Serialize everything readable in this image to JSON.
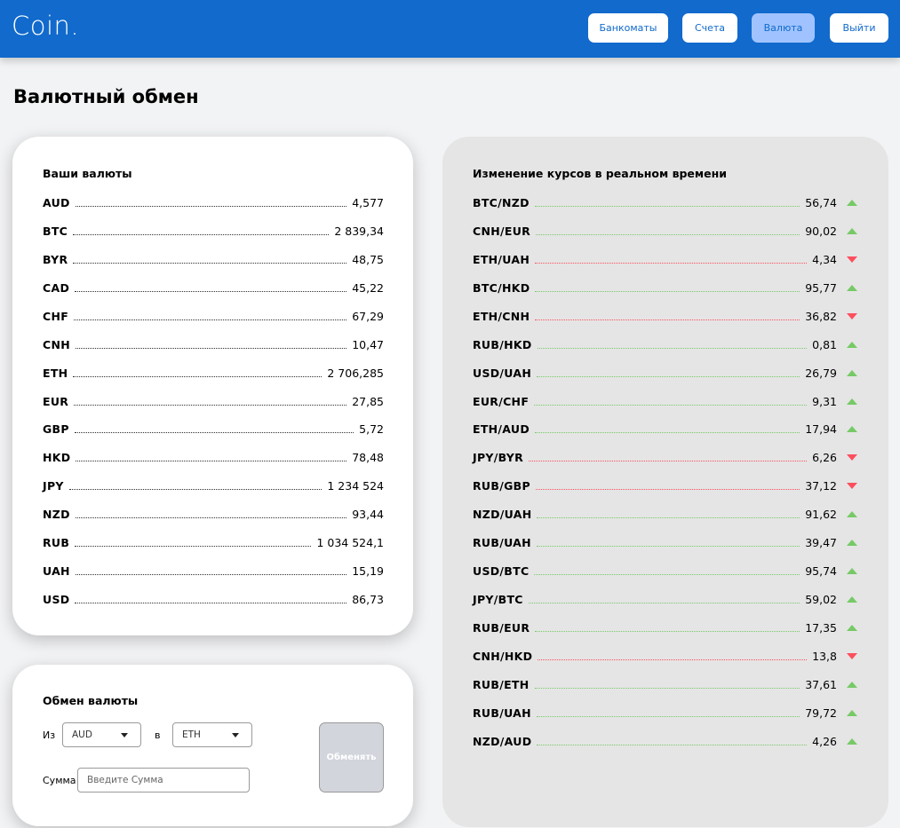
{
  "header": {
    "logo": "Coin.",
    "nav": [
      {
        "label": "Банкоматы",
        "active": false
      },
      {
        "label": "Счета",
        "active": false
      },
      {
        "label": "Валюта",
        "active": true
      },
      {
        "label": "Выйти",
        "active": false
      }
    ]
  },
  "page_title": "Валютный обмен",
  "your_currencies": {
    "title": "Ваши валюты",
    "items": [
      {
        "code": "AUD",
        "amount": "4,577"
      },
      {
        "code": "BTC",
        "amount": "2 839,34"
      },
      {
        "code": "BYR",
        "amount": "48,75"
      },
      {
        "code": "CAD",
        "amount": "45,22"
      },
      {
        "code": "CHF",
        "amount": "67,29"
      },
      {
        "code": "CNH",
        "amount": "10,47"
      },
      {
        "code": "ETH",
        "amount": "2 706,285"
      },
      {
        "code": "EUR",
        "amount": "27,85"
      },
      {
        "code": "GBP",
        "amount": "5,72"
      },
      {
        "code": "HKD",
        "amount": "78,48"
      },
      {
        "code": "JPY",
        "amount": "1 234 524"
      },
      {
        "code": "NZD",
        "amount": "93,44"
      },
      {
        "code": "RUB",
        "amount": "1 034 524,1"
      },
      {
        "code": "UAH",
        "amount": "15,19"
      },
      {
        "code": "USD",
        "amount": "86,73"
      }
    ]
  },
  "exchange": {
    "title": "Обмен валюты",
    "from_label": "Из",
    "from_value": "AUD",
    "to_label": "в",
    "to_value": "ETH",
    "amount_label": "Сумма",
    "amount_placeholder": "Введите Сумма",
    "submit_label": "Обменять"
  },
  "rates": {
    "title": "Изменение курсов в реальном времени",
    "items": [
      {
        "pair": "BTC/NZD",
        "rate": "56,74",
        "trend": "up"
      },
      {
        "pair": "CNH/EUR",
        "rate": "90,02",
        "trend": "up"
      },
      {
        "pair": "ETH/UAH",
        "rate": "4,34",
        "trend": "down"
      },
      {
        "pair": "BTC/HKD",
        "rate": "95,77",
        "trend": "up"
      },
      {
        "pair": "ETH/CNH",
        "rate": "36,82",
        "trend": "down"
      },
      {
        "pair": "RUB/HKD",
        "rate": "0,81",
        "trend": "up"
      },
      {
        "pair": "USD/UAH",
        "rate": "26,79",
        "trend": "up"
      },
      {
        "pair": "EUR/CHF",
        "rate": "9,31",
        "trend": "up"
      },
      {
        "pair": "ETH/AUD",
        "rate": "17,94",
        "trend": "up"
      },
      {
        "pair": "JPY/BYR",
        "rate": "6,26",
        "trend": "down"
      },
      {
        "pair": "RUB/GBP",
        "rate": "37,12",
        "trend": "down"
      },
      {
        "pair": "NZD/UAH",
        "rate": "91,62",
        "trend": "up"
      },
      {
        "pair": "RUB/UAH",
        "rate": "39,47",
        "trend": "up"
      },
      {
        "pair": "USD/BTC",
        "rate": "95,74",
        "trend": "up"
      },
      {
        "pair": "JPY/BTC",
        "rate": "59,02",
        "trend": "up"
      },
      {
        "pair": "RUB/EUR",
        "rate": "17,35",
        "trend": "up"
      },
      {
        "pair": "CNH/HKD",
        "rate": "13,8",
        "trend": "down"
      },
      {
        "pair": "RUB/ETH",
        "rate": "37,61",
        "trend": "up"
      },
      {
        "pair": "RUB/UAH",
        "rate": "79,72",
        "trend": "up"
      },
      {
        "pair": "NZD/AUD",
        "rate": "4,26",
        "trend": "up"
      }
    ]
  },
  "colors": {
    "header": "#116acc",
    "active_nav": "#a0c3ff",
    "trend_up": "#76ca66",
    "trend_down": "#fd4e5d"
  }
}
